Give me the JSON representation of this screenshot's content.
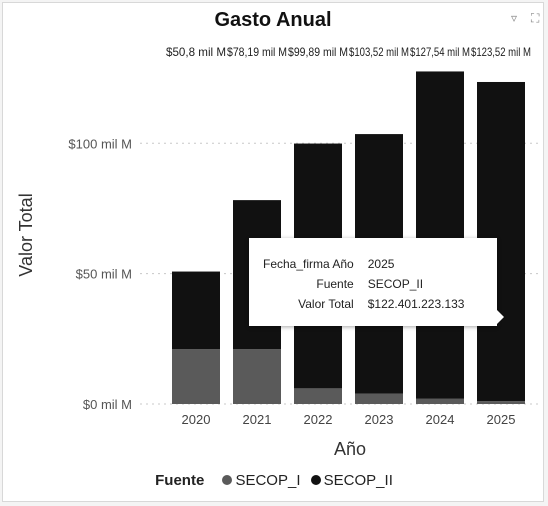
{
  "header": {
    "filter_icon": "filter-icon",
    "focus_icon": "focus-mode-icon"
  },
  "chart_data": {
    "type": "bar",
    "stacked": true,
    "title": "Gasto Anual",
    "xlabel": "Año",
    "ylabel": "Valor Total",
    "categories": [
      "2020",
      "2021",
      "2022",
      "2023",
      "2024",
      "2025"
    ],
    "series": [
      {
        "name": "SECOP_I",
        "values": [
          21,
          21,
          6,
          4,
          2,
          1.1
        ],
        "color": "#5a5a5a"
      },
      {
        "name": "SECOP_II",
        "values": [
          29.8,
          57.19,
          93.89,
          99.52,
          125.54,
          122.4
        ],
        "color": "#111111"
      }
    ],
    "total_labels": [
      "$50,8 mil M",
      "$78,19 mil M",
      "$99,89 mil M",
      "$103,52 mil M",
      "$127,54 mil M",
      "$123,52 mil M"
    ],
    "yticks": [
      0,
      50,
      100
    ],
    "ytick_labels": [
      "$0 mil M",
      "$50 mil M",
      "$100 mil M"
    ],
    "ylim": [
      0,
      135
    ],
    "grid": true,
    "legend": {
      "title": "Fuente",
      "position": "bottom"
    }
  },
  "tooltip": {
    "rows": [
      {
        "label": "Fecha_firma Año",
        "value": "2025"
      },
      {
        "label": "Fuente",
        "value": "SECOP_II"
      },
      {
        "label": "Valor Total",
        "value": "$122.401.223.133"
      }
    ]
  }
}
